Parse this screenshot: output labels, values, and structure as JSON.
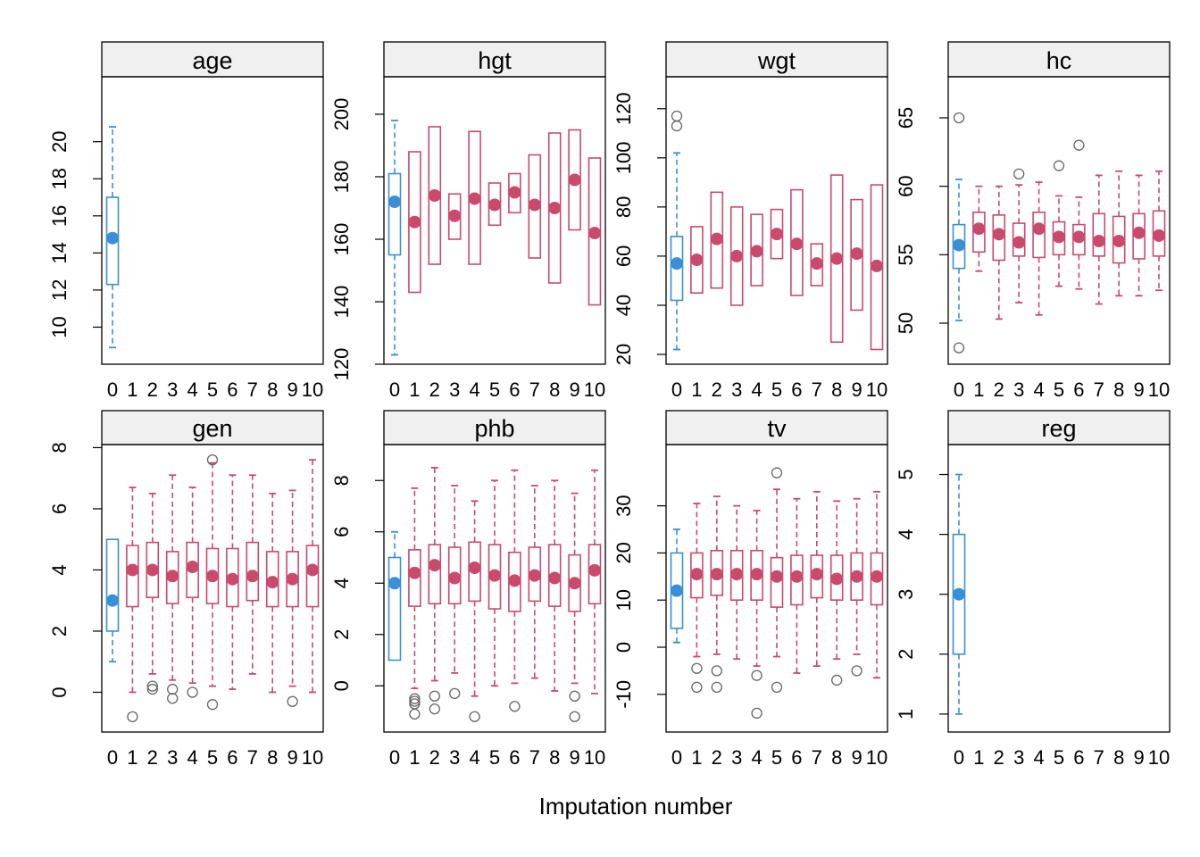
{
  "chart_data": {
    "type": "boxplot",
    "xlabel": "Imputation number",
    "x_ticks": [
      "0",
      "1",
      "2",
      "3",
      "4",
      "5",
      "6",
      "7",
      "8",
      "9",
      "10"
    ],
    "colors": {
      "observed": "#3B8FD6",
      "imputed": "#C94A6E",
      "outlier": "#666666",
      "strip": "#F0F0F0"
    },
    "panels": [
      {
        "name": "age",
        "ylim": [
          8,
          23.5
        ],
        "yticks": [
          10,
          12,
          14,
          16,
          18,
          20
        ],
        "boxes": [
          {
            "imp": 0,
            "lo": 8.9,
            "q1": 12.3,
            "med": 14.8,
            "q3": 17.0,
            "hi": 20.8,
            "outliers": []
          }
        ]
      },
      {
        "name": "hgt",
        "ylim": [
          120,
          212
        ],
        "yticks": [
          120,
          140,
          160,
          180,
          200
        ],
        "boxes": [
          {
            "imp": 0,
            "lo": 123,
            "q1": 155,
            "med": 172,
            "q3": 181,
            "hi": 198,
            "outliers": []
          },
          {
            "imp": 1,
            "q1": 143,
            "med": 165.5,
            "q3": 188,
            "outliers": []
          },
          {
            "imp": 2,
            "q1": 152,
            "med": 174,
            "q3": 196,
            "outliers": []
          },
          {
            "imp": 3,
            "q1": 160,
            "med": 167.5,
            "q3": 174.5,
            "outliers": []
          },
          {
            "imp": 4,
            "q1": 152,
            "med": 173,
            "q3": 194.5,
            "outliers": []
          },
          {
            "imp": 5,
            "q1": 164.5,
            "med": 171,
            "q3": 178,
            "outliers": []
          },
          {
            "imp": 6,
            "q1": 168.5,
            "med": 175,
            "q3": 181,
            "outliers": []
          },
          {
            "imp": 7,
            "q1": 154,
            "med": 171,
            "q3": 187,
            "outliers": []
          },
          {
            "imp": 8,
            "q1": 146,
            "med": 170,
            "q3": 194,
            "outliers": []
          },
          {
            "imp": 9,
            "q1": 163,
            "med": 179,
            "q3": 195,
            "outliers": []
          },
          {
            "imp": 10,
            "q1": 139,
            "med": 162,
            "q3": 186,
            "outliers": []
          }
        ]
      },
      {
        "name": "wgt",
        "ylim": [
          16,
          133
        ],
        "yticks": [
          20,
          40,
          60,
          80,
          100,
          120
        ],
        "boxes": [
          {
            "imp": 0,
            "lo": 22,
            "q1": 42,
            "med": 57,
            "q3": 68,
            "hi": 102,
            "outliers": [
              113,
              117
            ]
          },
          {
            "imp": 1,
            "q1": 45,
            "med": 58.5,
            "q3": 72,
            "outliers": []
          },
          {
            "imp": 2,
            "q1": 47,
            "med": 67,
            "q3": 86,
            "outliers": []
          },
          {
            "imp": 3,
            "q1": 40,
            "med": 60,
            "q3": 80,
            "outliers": []
          },
          {
            "imp": 4,
            "q1": 48,
            "med": 62,
            "q3": 77,
            "outliers": []
          },
          {
            "imp": 5,
            "q1": 59,
            "med": 69,
            "q3": 79,
            "outliers": []
          },
          {
            "imp": 6,
            "q1": 44,
            "med": 65,
            "q3": 87,
            "outliers": []
          },
          {
            "imp": 7,
            "q1": 48,
            "med": 57,
            "q3": 65,
            "outliers": []
          },
          {
            "imp": 8,
            "q1": 25,
            "med": 59,
            "q3": 93,
            "outliers": []
          },
          {
            "imp": 9,
            "q1": 38,
            "med": 61,
            "q3": 83,
            "outliers": []
          },
          {
            "imp": 10,
            "q1": 22,
            "med": 56,
            "q3": 89,
            "outliers": []
          }
        ]
      },
      {
        "name": "hc",
        "ylim": [
          47,
          68
        ],
        "yticks": [
          50,
          55,
          60,
          65
        ],
        "boxes": [
          {
            "imp": 0,
            "lo": 50.2,
            "q1": 54,
            "med": 55.7,
            "q3": 57.2,
            "hi": 60.5,
            "outliers": [
              48.2,
              65
            ]
          },
          {
            "imp": 1,
            "lo": 53.8,
            "q1": 55.2,
            "med": 56.9,
            "q3": 58.1,
            "hi": 60,
            "outliers": []
          },
          {
            "imp": 2,
            "lo": 50.3,
            "q1": 54.6,
            "med": 56.5,
            "q3": 57.9,
            "hi": 60,
            "outliers": []
          },
          {
            "imp": 3,
            "lo": 51.5,
            "q1": 54.9,
            "med": 55.9,
            "q3": 57.3,
            "hi": 60.1,
            "outliers": [
              60.9
            ]
          },
          {
            "imp": 4,
            "lo": 50.6,
            "q1": 54.8,
            "med": 56.9,
            "q3": 58.1,
            "hi": 60.3,
            "outliers": []
          },
          {
            "imp": 5,
            "lo": 52.7,
            "q1": 55,
            "med": 56.3,
            "q3": 57.4,
            "hi": 59.3,
            "outliers": [
              61.5
            ]
          },
          {
            "imp": 6,
            "lo": 52.5,
            "q1": 55,
            "med": 56.3,
            "q3": 57.2,
            "hi": 59.2,
            "outliers": [
              63
            ]
          },
          {
            "imp": 7,
            "lo": 51.4,
            "q1": 54.9,
            "med": 56,
            "q3": 58,
            "hi": 60.8,
            "outliers": []
          },
          {
            "imp": 8,
            "lo": 52,
            "q1": 54.4,
            "med": 56,
            "q3": 57.8,
            "hi": 61.1,
            "outliers": []
          },
          {
            "imp": 9,
            "lo": 52,
            "q1": 54.7,
            "med": 56.6,
            "q3": 58,
            "hi": 60.8,
            "outliers": []
          },
          {
            "imp": 10,
            "lo": 52.4,
            "q1": 54.9,
            "med": 56.4,
            "q3": 58.2,
            "hi": 61.1,
            "outliers": []
          }
        ]
      },
      {
        "name": "gen",
        "ylim": [
          -1.3,
          8.1
        ],
        "yticks": [
          0,
          2,
          4,
          6,
          8
        ],
        "boxes": [
          {
            "imp": 0,
            "lo": 1,
            "q1": 2,
            "med": 3,
            "q3": 5,
            "hi": 5,
            "outliers": []
          },
          {
            "imp": 1,
            "lo": 0,
            "q1": 2.8,
            "med": 4,
            "q3": 4.8,
            "hi": 6.7,
            "outliers": [
              -0.8
            ]
          },
          {
            "imp": 2,
            "lo": 0.6,
            "q1": 3.1,
            "med": 4,
            "q3": 4.9,
            "hi": 6.5,
            "outliers": [
              0.2,
              0.1
            ]
          },
          {
            "imp": 3,
            "lo": 0.4,
            "q1": 2.9,
            "med": 3.8,
            "q3": 4.6,
            "hi": 7.1,
            "outliers": [
              0.1,
              -0.2
            ]
          },
          {
            "imp": 4,
            "lo": 0.3,
            "q1": 3.1,
            "med": 4.1,
            "q3": 4.9,
            "hi": 6.7,
            "outliers": [
              0
            ]
          },
          {
            "imp": 5,
            "lo": 0.2,
            "q1": 2.9,
            "med": 3.8,
            "q3": 4.7,
            "hi": 7.5,
            "outliers": [
              7.6,
              -0.4
            ]
          },
          {
            "imp": 6,
            "lo": 0.1,
            "q1": 2.8,
            "med": 3.7,
            "q3": 4.7,
            "hi": 7.1,
            "outliers": []
          },
          {
            "imp": 7,
            "lo": 0.6,
            "q1": 3,
            "med": 3.8,
            "q3": 4.9,
            "hi": 7.1,
            "outliers": []
          },
          {
            "imp": 8,
            "lo": 0,
            "q1": 2.8,
            "med": 3.6,
            "q3": 4.6,
            "hi": 6.5,
            "outliers": []
          },
          {
            "imp": 9,
            "lo": 0.2,
            "q1": 2.8,
            "med": 3.7,
            "q3": 4.6,
            "hi": 6.6,
            "outliers": [
              -0.3
            ]
          },
          {
            "imp": 10,
            "lo": 0,
            "q1": 2.8,
            "med": 4,
            "q3": 4.8,
            "hi": 7.6,
            "outliers": []
          }
        ]
      },
      {
        "name": "phb",
        "ylim": [
          -1.8,
          9.4
        ],
        "yticks": [
          0,
          2,
          4,
          6,
          8
        ],
        "boxes": [
          {
            "imp": 0,
            "lo": 1,
            "q1": 1,
            "med": 4,
            "q3": 5,
            "hi": 6,
            "outliers": []
          },
          {
            "imp": 1,
            "lo": -0.1,
            "q1": 3.1,
            "med": 4.4,
            "q3": 5.3,
            "hi": 7.7,
            "outliers": [
              -0.5,
              -0.6,
              -0.7,
              -1.1
            ]
          },
          {
            "imp": 2,
            "lo": 0.2,
            "q1": 3.2,
            "med": 4.7,
            "q3": 5.5,
            "hi": 8.5,
            "outliers": [
              -0.4,
              -0.9
            ]
          },
          {
            "imp": 3,
            "lo": 0.5,
            "q1": 3.2,
            "med": 4.2,
            "q3": 5.4,
            "hi": 7.8,
            "outliers": [
              -0.3
            ]
          },
          {
            "imp": 4,
            "lo": -0.4,
            "q1": 3.3,
            "med": 4.6,
            "q3": 5.6,
            "hi": 7.2,
            "outliers": [
              -1.2
            ]
          },
          {
            "imp": 5,
            "lo": 0,
            "q1": 3,
            "med": 4.3,
            "q3": 5.5,
            "hi": 8,
            "outliers": []
          },
          {
            "imp": 6,
            "lo": 0.1,
            "q1": 2.9,
            "med": 4.1,
            "q3": 5.2,
            "hi": 8.4,
            "outliers": [
              -0.8
            ]
          },
          {
            "imp": 7,
            "lo": 0.3,
            "q1": 3.3,
            "med": 4.3,
            "q3": 5.4,
            "hi": 7.8,
            "outliers": []
          },
          {
            "imp": 8,
            "lo": -0.2,
            "q1": 3.1,
            "med": 4.2,
            "q3": 5.5,
            "hi": 8,
            "outliers": []
          },
          {
            "imp": 9,
            "lo": 0.1,
            "q1": 2.9,
            "med": 4,
            "q3": 5.1,
            "hi": 7.5,
            "outliers": [
              -0.4,
              -1.2
            ]
          },
          {
            "imp": 10,
            "lo": -0.3,
            "q1": 3.2,
            "med": 4.5,
            "q3": 5.5,
            "hi": 8.4,
            "outliers": []
          }
        ]
      },
      {
        "name": "tv",
        "ylim": [
          -18,
          43
        ],
        "yticks": [
          -10,
          0,
          10,
          20,
          30
        ],
        "boxes": [
          {
            "imp": 0,
            "lo": 1,
            "q1": 4,
            "med": 12,
            "q3": 20,
            "hi": 25,
            "outliers": []
          },
          {
            "imp": 1,
            "lo": -2,
            "q1": 10.5,
            "med": 15.5,
            "q3": 20,
            "hi": 30.5,
            "outliers": [
              -4.5,
              -8.5
            ]
          },
          {
            "imp": 2,
            "lo": -1.5,
            "q1": 11,
            "med": 15.5,
            "q3": 20.5,
            "hi": 32,
            "outliers": [
              -5,
              -8.5
            ]
          },
          {
            "imp": 3,
            "lo": -2.5,
            "q1": 10,
            "med": 15.5,
            "q3": 20.5,
            "hi": 30,
            "outliers": []
          },
          {
            "imp": 4,
            "lo": -4,
            "q1": 10,
            "med": 15.5,
            "q3": 20.5,
            "hi": 29,
            "outliers": [
              -6,
              -14
            ]
          },
          {
            "imp": 5,
            "lo": -2,
            "q1": 8.5,
            "med": 15,
            "q3": 19,
            "hi": 33.5,
            "outliers": [
              37,
              -8.5
            ]
          },
          {
            "imp": 6,
            "lo": -5.5,
            "q1": 9,
            "med": 15,
            "q3": 19.5,
            "hi": 31.5,
            "outliers": []
          },
          {
            "imp": 7,
            "lo": -4,
            "q1": 10.5,
            "med": 15.5,
            "q3": 19.5,
            "hi": 33,
            "outliers": []
          },
          {
            "imp": 8,
            "lo": -2.5,
            "q1": 10,
            "med": 14.5,
            "q3": 19.5,
            "hi": 31,
            "outliers": [
              -7
            ]
          },
          {
            "imp": 9,
            "lo": -1.5,
            "q1": 10,
            "med": 15,
            "q3": 20,
            "hi": 31.5,
            "outliers": [
              -5
            ]
          },
          {
            "imp": 10,
            "lo": -6.5,
            "q1": 9,
            "med": 15,
            "q3": 20,
            "hi": 33,
            "outliers": []
          }
        ]
      },
      {
        "name": "reg",
        "ylim": [
          0.7,
          5.5
        ],
        "yticks": [
          1,
          2,
          3,
          4,
          5
        ],
        "boxes": [
          {
            "imp": 0,
            "lo": 1,
            "q1": 2,
            "med": 3,
            "q3": 4,
            "hi": 5,
            "outliers": []
          }
        ]
      }
    ]
  }
}
